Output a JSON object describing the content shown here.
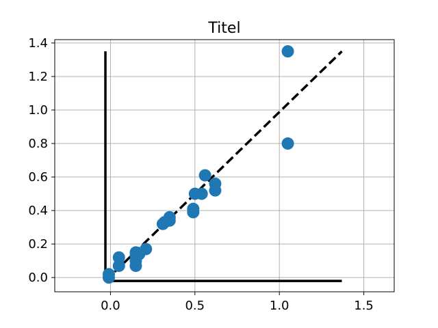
{
  "chart_data": {
    "type": "scatter",
    "title": "Titel",
    "xlabel": "",
    "ylabel": "",
    "xlim": [
      -0.33,
      1.68
    ],
    "ylim": [
      -0.085,
      1.42
    ],
    "xticks": [
      0.0,
      0.5,
      1.0,
      1.5
    ],
    "xtick_labels": [
      "0.0",
      "0.5",
      "1.0",
      "1.5"
    ],
    "yticks": [
      0.0,
      0.2,
      0.4,
      0.6,
      0.8,
      1.0,
      1.2,
      1.4
    ],
    "ytick_labels": [
      "0.0",
      "0.2",
      "0.4",
      "0.6",
      "0.8",
      "1.0",
      "1.2",
      "1.4"
    ],
    "grid": true,
    "marker_color": "#1f77b4",
    "line_color": "#000000",
    "points": [
      {
        "x": -0.01,
        "y": 0.0
      },
      {
        "x": -0.01,
        "y": 0.02
      },
      {
        "x": 0.05,
        "y": 0.07
      },
      {
        "x": 0.05,
        "y": 0.12
      },
      {
        "x": 0.15,
        "y": 0.07
      },
      {
        "x": 0.15,
        "y": 0.1
      },
      {
        "x": 0.15,
        "y": 0.13
      },
      {
        "x": 0.15,
        "y": 0.15
      },
      {
        "x": 0.17,
        "y": 0.14
      },
      {
        "x": 0.21,
        "y": 0.17
      },
      {
        "x": 0.31,
        "y": 0.32
      },
      {
        "x": 0.32,
        "y": 0.33
      },
      {
        "x": 0.35,
        "y": 0.34
      },
      {
        "x": 0.35,
        "y": 0.36
      },
      {
        "x": 0.49,
        "y": 0.39
      },
      {
        "x": 0.49,
        "y": 0.41
      },
      {
        "x": 0.5,
        "y": 0.5
      },
      {
        "x": 0.54,
        "y": 0.5
      },
      {
        "x": 0.56,
        "y": 0.61
      },
      {
        "x": 0.62,
        "y": 0.52
      },
      {
        "x": 0.62,
        "y": 0.56
      },
      {
        "x": 1.05,
        "y": 0.8
      },
      {
        "x": 1.05,
        "y": 1.35
      }
    ],
    "lines": [
      {
        "style": "dashed",
        "x": [
          -0.03,
          1.37
        ],
        "y": [
          -0.02,
          1.35
        ]
      },
      {
        "style": "solid",
        "x": [
          -0.03,
          -0.03
        ],
        "y": [
          -0.02,
          1.35
        ]
      },
      {
        "style": "solid",
        "x": [
          -0.03,
          1.37
        ],
        "y": [
          -0.02,
          -0.02
        ]
      }
    ]
  }
}
